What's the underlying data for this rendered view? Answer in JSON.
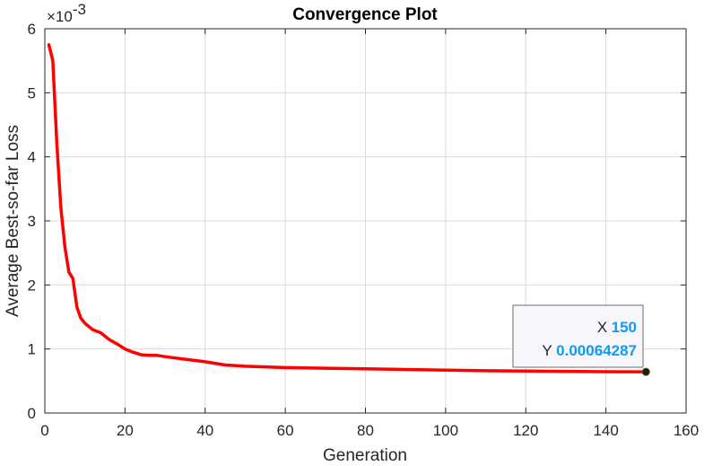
{
  "chart_data": {
    "type": "line",
    "title": "Convergence Plot",
    "xlabel": "Generation",
    "ylabel": "Average Best-so-far Loss",
    "y_exponent_label": "×10",
    "y_exponent_power": "-3",
    "xlim": [
      0,
      160
    ],
    "ylim": [
      0,
      6
    ],
    "x_ticks": [
      0,
      20,
      40,
      60,
      80,
      100,
      120,
      140,
      160
    ],
    "y_ticks": [
      0,
      1,
      2,
      3,
      4,
      5,
      6
    ],
    "x_tick_labels": [
      "0",
      "20",
      "40",
      "60",
      "80",
      "100",
      "120",
      "140",
      "160"
    ],
    "y_tick_labels": [
      "0",
      "1",
      "2",
      "3",
      "4",
      "5",
      "6"
    ],
    "grid": true,
    "series": [
      {
        "color": "#ff0000",
        "x": [
          1,
          2,
          3,
          4,
          5,
          6,
          7,
          8,
          9,
          10,
          12,
          14,
          16,
          18,
          20,
          22,
          24,
          26,
          28,
          30,
          35,
          40,
          42,
          45,
          50,
          55,
          60,
          70,
          80,
          90,
          100,
          110,
          120,
          130,
          140,
          150
        ],
        "y": [
          5.75,
          5.5,
          4.2,
          3.2,
          2.6,
          2.2,
          2.1,
          1.65,
          1.48,
          1.4,
          1.3,
          1.25,
          1.15,
          1.08,
          1.0,
          0.95,
          0.91,
          0.9,
          0.9,
          0.88,
          0.84,
          0.8,
          0.78,
          0.75,
          0.73,
          0.72,
          0.71,
          0.7,
          0.69,
          0.68,
          0.67,
          0.66,
          0.655,
          0.65,
          0.645,
          0.64287
        ]
      }
    ],
    "datatip": {
      "x_key": "X",
      "x_value": "150",
      "y_key": "Y",
      "y_value": "0.00064287",
      "point_x": 150,
      "point_y": 0.64287
    }
  }
}
